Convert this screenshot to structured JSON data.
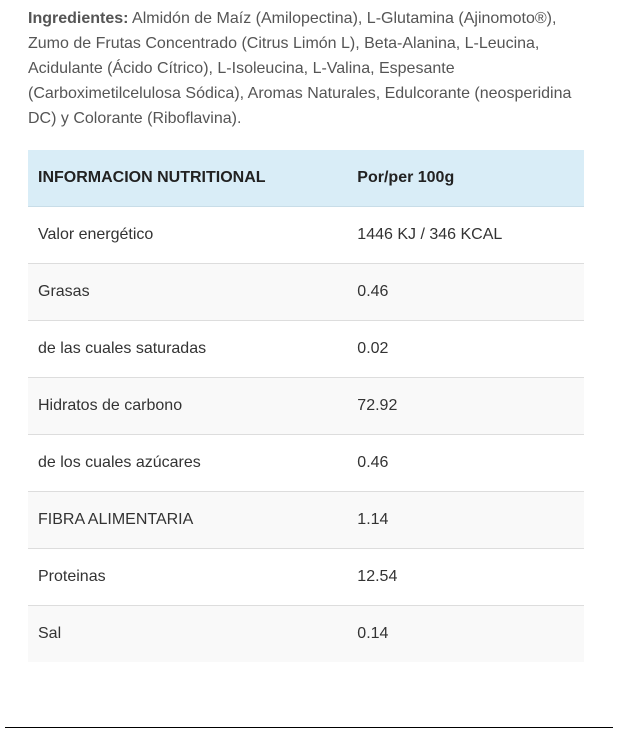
{
  "ingredients": {
    "label": "Ingredientes:",
    "text": " Almidón de Maíz (Amilopectina), L-Glutamina (Ajinomoto®), Zumo de Frutas Concentrado (Citrus Limón L), Beta-Alanina, L-Leucina, Acidulante (Ácido Cítrico), L-Isoleucina, L-Valina, Espesante (Carboximetilcelulosa Sódica), Aromas Naturales, Edulcorante (neosperidina DC) y Colorante (Riboflavina)."
  },
  "nutrition_table": {
    "header": {
      "name": "INFORMACION NUTRITIONAL",
      "value": "Por/per 100g"
    },
    "header_color": "#d9edf7",
    "stripe_color": "#f9f9f9",
    "rows": [
      {
        "name": "Valor energético",
        "value": "1446 KJ / 346 KCAL"
      },
      {
        "name": "Grasas",
        "value": "0.46"
      },
      {
        "name": "de las cuales saturadas",
        "value": "0.02"
      },
      {
        "name": "Hidratos de carbono",
        "value": "72.92"
      },
      {
        "name": "de los cuales azúcares",
        "value": "0.46"
      },
      {
        "name": "FIBRA ALIMENTARIA",
        "value": "1.14"
      },
      {
        "name": "Proteinas",
        "value": "12.54"
      },
      {
        "name": "Sal",
        "value": "0.14"
      }
    ]
  }
}
